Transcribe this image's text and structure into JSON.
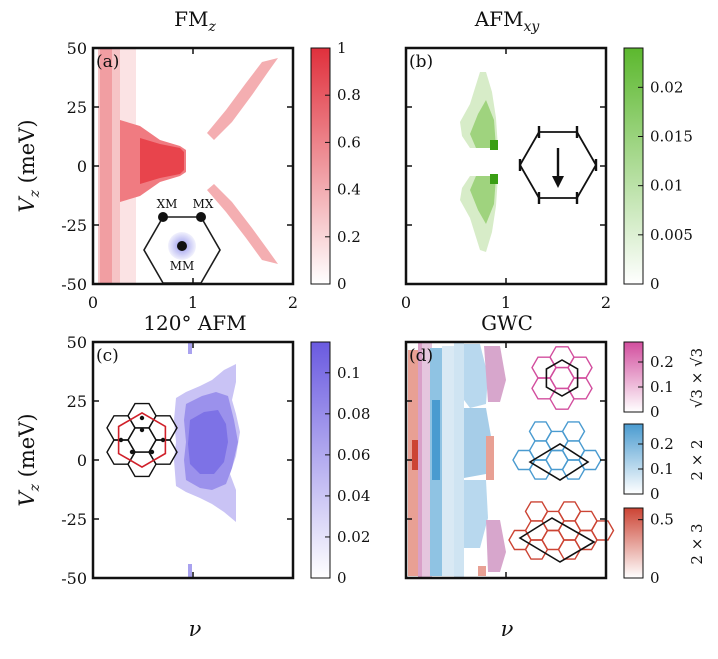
{
  "chart_data": [
    {
      "id": "a",
      "type": "heatmap",
      "title_main": "FM",
      "title_sub": "z",
      "panel_label": "(a)",
      "xlabel": "ν",
      "ylabel_main": "V",
      "ylabel_sub": "z",
      "ylabel_unit": " (meV)",
      "xlim": [
        0,
        2
      ],
      "ylim": [
        -50,
        50
      ],
      "xticks": [
        "0",
        "1",
        "2"
      ],
      "yticks": [
        "50",
        "25",
        "0",
        "-25",
        "-50"
      ],
      "colorbar": {
        "color": "#e0303c",
        "min": 0,
        "max": 1,
        "ticks": [
          "1",
          "0.8",
          "0.6",
          "0.4",
          "0.2",
          "0"
        ],
        "tick_values": [
          1,
          0.8,
          0.6,
          0.4,
          0.2,
          0
        ]
      },
      "inset_labels": [
        "XM",
        "MX",
        "MM"
      ]
    },
    {
      "id": "b",
      "type": "heatmap",
      "title_main": "AFM",
      "title_sub": "xy",
      "panel_label": "(b)",
      "xlim": [
        0,
        2
      ],
      "ylim": [
        -50,
        50
      ],
      "colorbar": {
        "color": "#5cb82e",
        "min": 0,
        "max": 0.024,
        "ticks": [
          "0.02",
          "0.015",
          "0.01",
          "0.005",
          "0"
        ],
        "tick_values": [
          0.02,
          0.015,
          0.01,
          0.005,
          0
        ]
      }
    },
    {
      "id": "c",
      "type": "heatmap",
      "title_main": "120° AFM",
      "title_sub": "",
      "panel_label": "(c)",
      "xlabel": "ν",
      "ylabel_main": "V",
      "ylabel_sub": "z",
      "ylabel_unit": " (meV)",
      "xlim": [
        0,
        2
      ],
      "ylim": [
        -50,
        50
      ],
      "xticks": [
        "0",
        "1",
        "2"
      ],
      "yticks": [
        "50",
        "25",
        "0",
        "-25",
        "-50"
      ],
      "colorbar": {
        "color": "#6a5ae0",
        "min": 0,
        "max": 0.115,
        "ticks": [
          "0.1",
          "0.08",
          "0.06",
          "0.04",
          "0.02",
          "0"
        ],
        "tick_values": [
          0.1,
          0.08,
          0.06,
          0.04,
          0.02,
          0
        ]
      }
    },
    {
      "id": "d",
      "type": "heatmap",
      "title_main": "GWC",
      "title_sub": "",
      "panel_label": "(d)",
      "xlabel": "ν",
      "xlim": [
        0,
        2
      ],
      "ylim": [
        -50,
        50
      ],
      "xticks": [
        "0",
        "1",
        "2"
      ],
      "colorbars": [
        {
          "label": "√3 × √3",
          "color": "#d24e9e",
          "max": 0.28,
          "ticks": [
            "0.2",
            "0.1",
            "0"
          ],
          "tick_values": [
            0.2,
            0.1,
            0
          ]
        },
        {
          "label": "2 × 2",
          "color": "#4a9bd0",
          "max": 0.28,
          "ticks": [
            "0.2",
            "0.1",
            "0"
          ],
          "tick_values": [
            0.2,
            0.1,
            0
          ]
        },
        {
          "label": "2 × 3",
          "color": "#cc4434",
          "max": 0.6,
          "ticks": [
            "0.5",
            "0"
          ],
          "tick_values": [
            0.5,
            0
          ]
        }
      ]
    }
  ]
}
